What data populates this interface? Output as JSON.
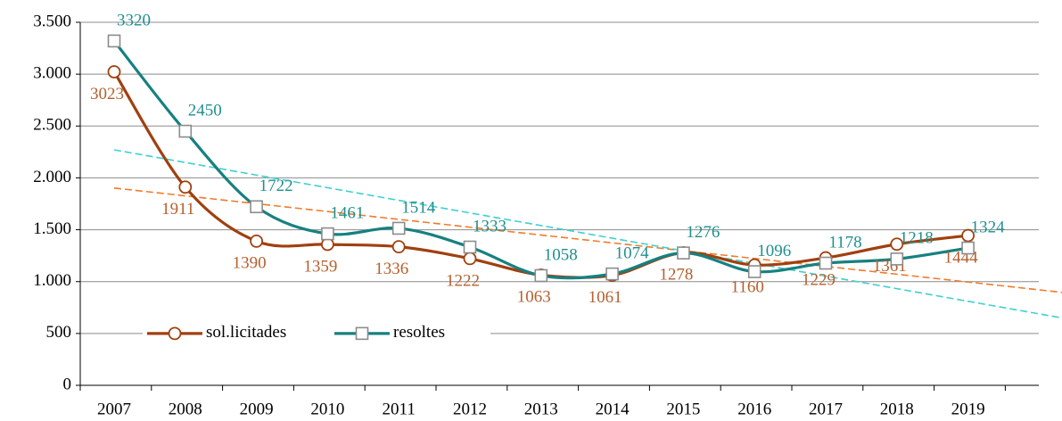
{
  "chart_data": {
    "type": "line",
    "categories": [
      "2007",
      "2008",
      "2009",
      "2010",
      "2011",
      "2012",
      "2013",
      "2014",
      "2015",
      "2016",
      "2017",
      "2018",
      "2019"
    ],
    "series": [
      {
        "name": "sol.licitades",
        "color": "#a0400f",
        "label_color": "#b5602e",
        "trend_color": "#f07a2a",
        "marker": "circle",
        "values": [
          3023,
          1911,
          1390,
          1359,
          1336,
          1222,
          1063,
          1061,
          1278,
          1160,
          1229,
          1361,
          1444
        ]
      },
      {
        "name": "resoltes",
        "color": "#178080",
        "label_color": "#1f8f8f",
        "trend_color": "#3fd0d0",
        "marker": "square",
        "values": [
          3320,
          2450,
          1722,
          1461,
          1514,
          1333,
          1058,
          1074,
          1276,
          1096,
          1178,
          1218,
          1324
        ]
      }
    ],
    "ylim": [
      0,
      3500
    ],
    "yticks": [
      0,
      500,
      {
        "value": 1000,
        "label": "1.000"
      },
      {
        "value": 1500,
        "label": "1.500"
      },
      {
        "value": 2000,
        "label": "2.000"
      },
      {
        "value": 2500,
        "label": "2.500"
      },
      {
        "value": 3000,
        "label": "3.000"
      },
      {
        "value": 3500,
        "label": "3.500"
      }
    ],
    "grid": true,
    "smooth": true,
    "trendline": true,
    "legend": "lower left"
  }
}
